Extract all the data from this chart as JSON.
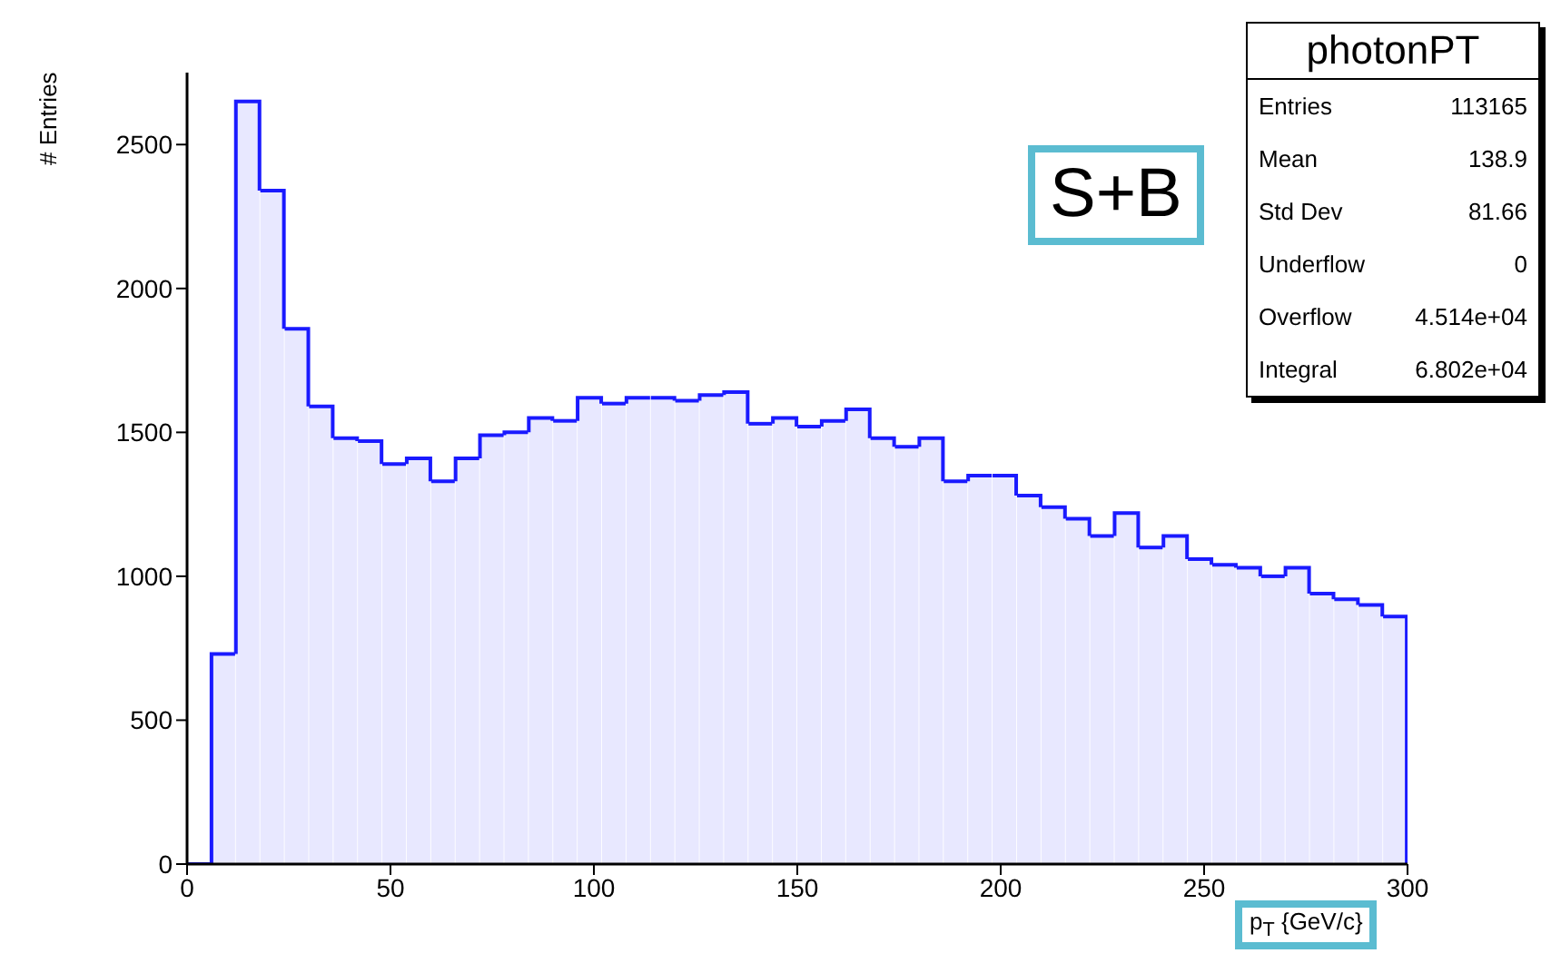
{
  "chart_data": {
    "type": "histogram",
    "xlabel": "p$_{T}$ {GeV/c}",
    "ylabel": "# Entries",
    "bins": [
      0,
      6,
      12,
      18,
      24,
      30,
      36,
      42,
      48,
      54,
      60,
      66,
      72,
      78,
      84,
      90,
      96,
      102,
      108,
      114,
      120,
      126,
      132,
      138,
      144,
      150,
      156,
      162,
      168,
      174,
      180,
      186,
      192,
      198,
      204,
      210,
      216,
      222,
      228,
      234,
      240,
      246,
      252,
      258,
      264,
      270,
      276,
      282,
      288,
      294,
      300
    ],
    "values": [
      0,
      730,
      2650,
      2340,
      1860,
      1590,
      1480,
      1470,
      1390,
      1410,
      1330,
      1410,
      1490,
      1500,
      1550,
      1540,
      1620,
      1600,
      1620,
      1620,
      1610,
      1630,
      1640,
      1530,
      1550,
      1520,
      1540,
      1580,
      1480,
      1450,
      1480,
      1330,
      1350,
      1350,
      1280,
      1240,
      1200,
      1140,
      1220,
      1100,
      1140,
      1060,
      1040,
      1030,
      1000,
      1030,
      940,
      920,
      900,
      860
    ],
    "color": "#1a1aff",
    "xlim": [
      0,
      300
    ],
    "xticks": [
      0,
      50,
      100,
      150,
      200,
      250,
      300
    ],
    "ylim": [
      0,
      2750
    ],
    "yticks": [
      0,
      500,
      1000,
      1500,
      2000,
      2500
    ],
    "grid": false,
    "legend": false,
    "annotations": [
      "S+B",
      "photonPT",
      "Entries 113165",
      "Mean 138.9",
      "Std Dev 81.66",
      "Underflow 0",
      "Overflow 4.514e+04",
      "Integral 6.802e+04"
    ]
  }
}
